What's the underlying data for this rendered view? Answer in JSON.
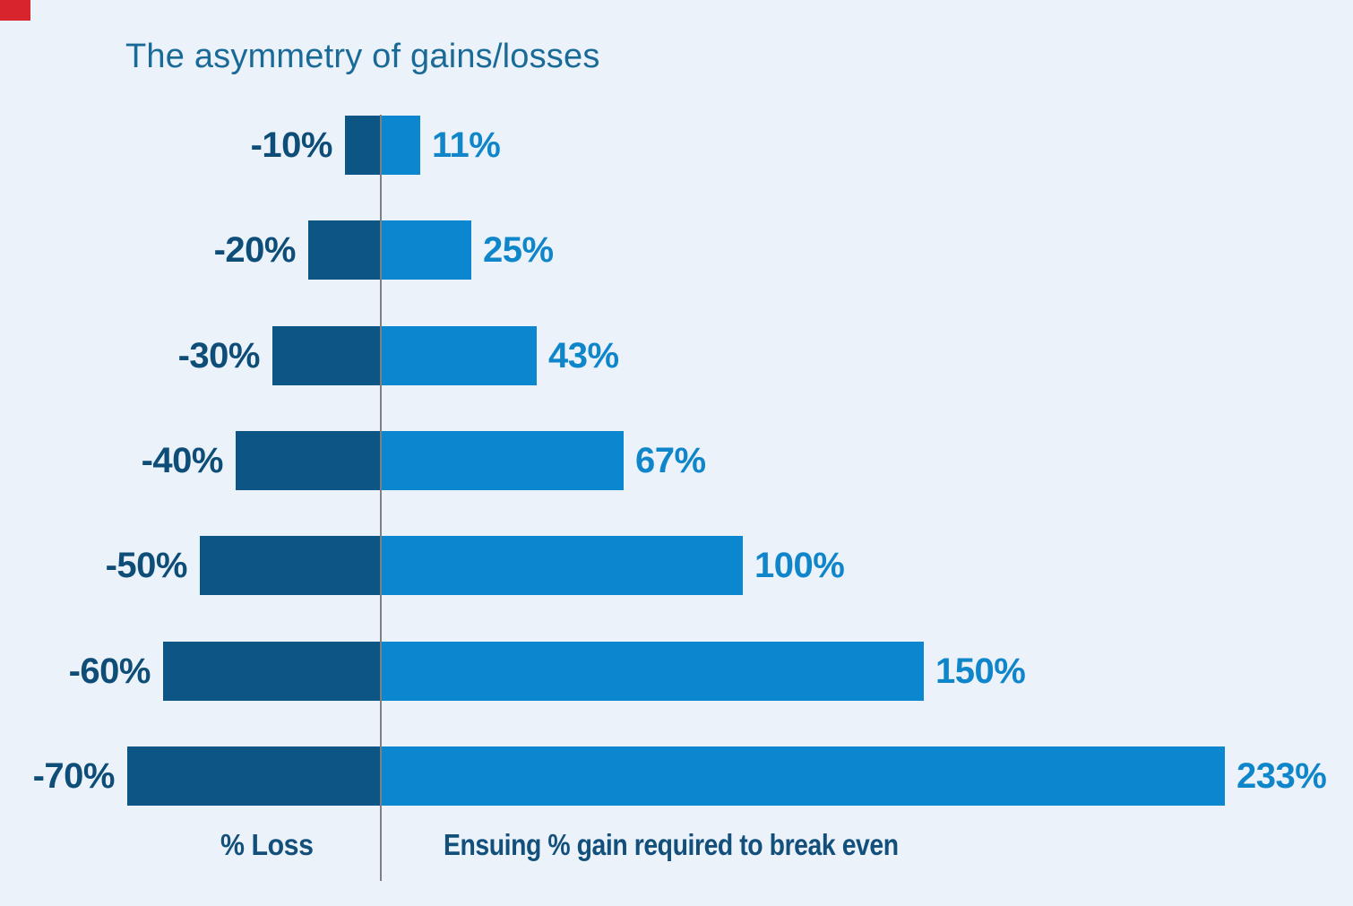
{
  "page": {
    "background_color": "#ebf2fa",
    "corner_marker_color": "#d8252d"
  },
  "chart_data": {
    "type": "bar",
    "variant": "diverging-horizontal",
    "title": "The asymmetry of gains/losses",
    "title_color": "#1a6a98",
    "categories": [
      "-10%",
      "-20%",
      "-30%",
      "-40%",
      "-50%",
      "-60%",
      "-70%"
    ],
    "series": [
      {
        "name": "% Loss",
        "side": "left",
        "color": "#0d5584",
        "label_color": "#0e4d78",
        "values": [
          10,
          20,
          30,
          40,
          50,
          60,
          70
        ],
        "labels": [
          "-10%",
          "-20%",
          "-30%",
          "-40%",
          "-50%",
          "-60%",
          "-70%"
        ]
      },
      {
        "name": "Ensuing % gain required to break even",
        "side": "right",
        "color": "#0a87cf",
        "label_color": "#0f85ca",
        "values": [
          11,
          25,
          43,
          67,
          100,
          150,
          233
        ],
        "labels": [
          "11%",
          "25%",
          "43%",
          "67%",
          "100%",
          "150%",
          "233%"
        ]
      }
    ],
    "axis_captions": {
      "left": "% Loss",
      "right": "Ensuing % gain required to break even",
      "color": "#134f7b"
    },
    "baseline_color": "#7d7f82",
    "xlim": [
      -70,
      233
    ],
    "grid": false,
    "legend": false,
    "units": "percent"
  }
}
